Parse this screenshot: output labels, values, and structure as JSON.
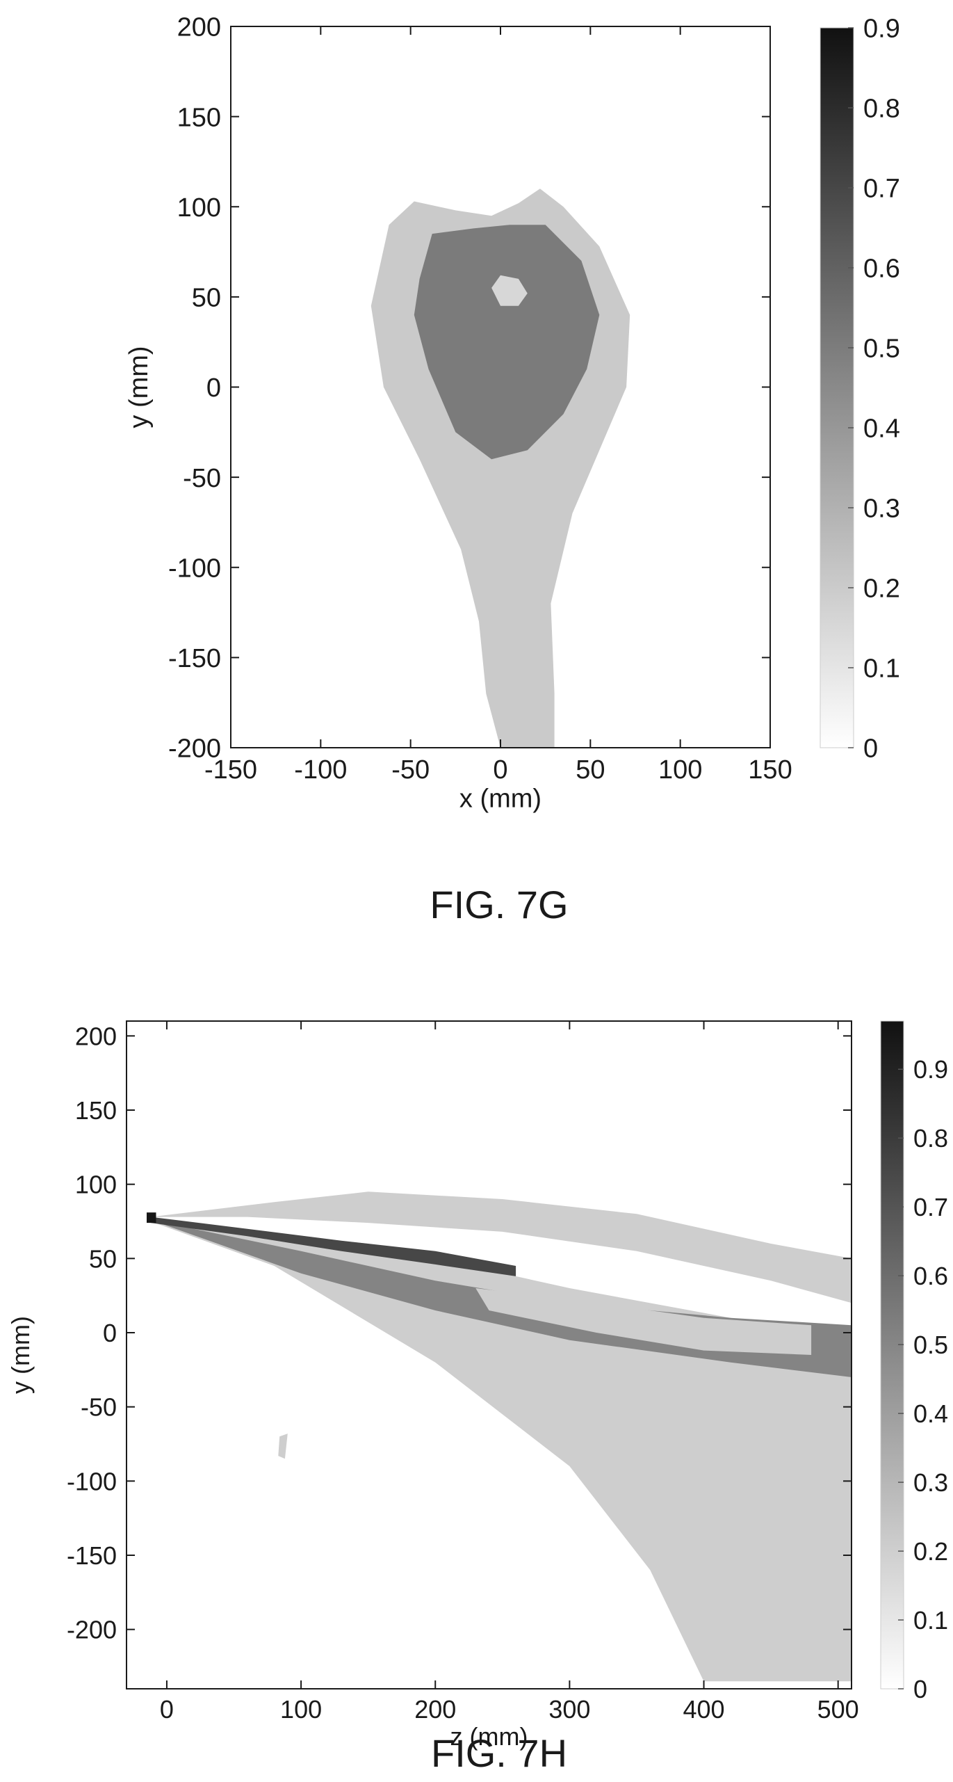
{
  "figures": [
    {
      "caption": "FIG. 7G"
    },
    {
      "caption": "FIG. 7H"
    }
  ],
  "chart_data": [
    {
      "type": "heatmap",
      "title": "",
      "xlabel": "x (mm)",
      "ylabel": "y (mm)",
      "xlim": [
        -150,
        150
      ],
      "ylim": [
        -200,
        200
      ],
      "x_ticks": [
        -150,
        -100,
        -50,
        0,
        50,
        100,
        150
      ],
      "y_ticks": [
        -200,
        -150,
        -100,
        -50,
        0,
        50,
        100,
        150,
        200
      ],
      "colorbar": {
        "min": 0,
        "max": 0.9,
        "ticks": [
          0,
          0.1,
          0.2,
          0.3,
          0.4,
          0.5,
          0.6,
          0.7,
          0.8,
          0.9
        ]
      },
      "colormap": {
        "low": "#ffffff",
        "high": "#111111"
      },
      "grid": false,
      "regions": [
        {
          "name": "outer-envelope",
          "value": 0.2,
          "outline": [
            [
              0,
              -200
            ],
            [
              -8,
              -170
            ],
            [
              -12,
              -130
            ],
            [
              -22,
              -90
            ],
            [
              -45,
              -40
            ],
            [
              -65,
              0
            ],
            [
              -72,
              45
            ],
            [
              -62,
              90
            ],
            [
              -48,
              103
            ],
            [
              -25,
              98
            ],
            [
              -5,
              95
            ],
            [
              10,
              102
            ],
            [
              22,
              110
            ],
            [
              35,
              100
            ],
            [
              55,
              78
            ],
            [
              72,
              40
            ],
            [
              70,
              0
            ],
            [
              55,
              -35
            ],
            [
              40,
              -70
            ],
            [
              28,
              -120
            ],
            [
              30,
              -170
            ],
            [
              30,
              -200
            ]
          ]
        },
        {
          "name": "core",
          "value": 0.5,
          "outline": [
            [
              -45,
              60
            ],
            [
              -38,
              85
            ],
            [
              -15,
              88
            ],
            [
              5,
              90
            ],
            [
              25,
              90
            ],
            [
              45,
              70
            ],
            [
              55,
              40
            ],
            [
              48,
              10
            ],
            [
              35,
              -15
            ],
            [
              15,
              -35
            ],
            [
              -5,
              -40
            ],
            [
              -25,
              -25
            ],
            [
              -40,
              10
            ],
            [
              -48,
              40
            ]
          ]
        },
        {
          "name": "center-spot",
          "value": 0.15,
          "outline": [
            [
              -5,
              55
            ],
            [
              0,
              62
            ],
            [
              10,
              60
            ],
            [
              15,
              52
            ],
            [
              10,
              45
            ],
            [
              0,
              45
            ]
          ]
        }
      ]
    },
    {
      "type": "heatmap",
      "title": "",
      "xlabel": "z (mm)",
      "ylabel": "y (mm)",
      "xlim": [
        -30,
        510
      ],
      "ylim": [
        -240,
        210
      ],
      "x_ticks": [
        0,
        100,
        200,
        300,
        400,
        500
      ],
      "y_ticks": [
        -200,
        -150,
        -100,
        -50,
        0,
        50,
        100,
        150,
        200
      ],
      "colorbar": {
        "min": 0,
        "max": 0.97,
        "ticks": [
          0,
          0.1,
          0.2,
          0.3,
          0.4,
          0.5,
          0.6,
          0.7,
          0.8,
          0.9
        ]
      },
      "colormap": {
        "low": "#ffffff",
        "high": "#111111"
      },
      "grid": false,
      "regions": [
        {
          "name": "lower-plume",
          "value": 0.2,
          "outline": [
            [
              -12,
              75
            ],
            [
              80,
              45
            ],
            [
              200,
              -20
            ],
            [
              300,
              -90
            ],
            [
              360,
              -160
            ],
            [
              400,
              -235
            ],
            [
              510,
              -235
            ],
            [
              510,
              -20
            ],
            [
              420,
              10
            ],
            [
              300,
              30
            ],
            [
              150,
              60
            ]
          ]
        },
        {
          "name": "upper-band",
          "value": 0.2,
          "outline": [
            [
              -12,
              78
            ],
            [
              80,
              88
            ],
            [
              150,
              95
            ],
            [
              250,
              90
            ],
            [
              350,
              80
            ],
            [
              450,
              60
            ],
            [
              510,
              50
            ],
            [
              510,
              20
            ],
            [
              450,
              35
            ],
            [
              350,
              55
            ],
            [
              250,
              68
            ],
            [
              150,
              74
            ],
            [
              60,
              78
            ]
          ]
        },
        {
          "name": "mid-band",
          "value": 0.5,
          "outline": [
            [
              -12,
              76
            ],
            [
              100,
              55
            ],
            [
              200,
              35
            ],
            [
              300,
              20
            ],
            [
              420,
              10
            ],
            [
              510,
              5
            ],
            [
              510,
              -30
            ],
            [
              420,
              -20
            ],
            [
              300,
              -5
            ],
            [
              200,
              15
            ],
            [
              100,
              40
            ]
          ]
        },
        {
          "name": "core-streak",
          "value": 0.75,
          "outline": [
            [
              -12,
              78
            ],
            [
              60,
              70
            ],
            [
              130,
              62
            ],
            [
              200,
              55
            ],
            [
              260,
              45
            ],
            [
              260,
              38
            ],
            [
              200,
              46
            ],
            [
              130,
              55
            ],
            [
              60,
              65
            ],
            [
              -12,
              74
            ]
          ]
        },
        {
          "name": "lower-mid-band",
          "value": 0.2,
          "outline": [
            [
              230,
              30
            ],
            [
              320,
              20
            ],
            [
              400,
              10
            ],
            [
              480,
              5
            ],
            [
              480,
              -15
            ],
            [
              400,
              -12
            ],
            [
              320,
              0
            ],
            [
              240,
              15
            ]
          ]
        },
        {
          "name": "stray-blob",
          "value": 0.2,
          "outline": [
            [
              84,
              -70
            ],
            [
              90,
              -68
            ],
            [
              88,
              -85
            ],
            [
              83,
              -83
            ]
          ]
        },
        {
          "name": "nozzle-tip",
          "value": 0.95,
          "outline": [
            [
              -15,
              81
            ],
            [
              -8,
              81
            ],
            [
              -8,
              74
            ],
            [
              -15,
              74
            ]
          ]
        }
      ]
    }
  ]
}
